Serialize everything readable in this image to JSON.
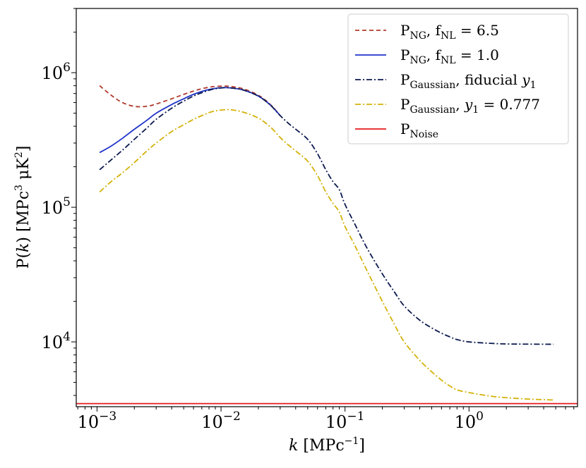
{
  "chart_data": {
    "type": "line",
    "xscale": "log",
    "yscale": "log",
    "xlim": [
      0.00068,
      7.5
    ],
    "ylim": [
      3300,
      3000000
    ],
    "xticks": [
      {
        "value": 0.001,
        "base": "10",
        "exp": "−3"
      },
      {
        "value": 0.01,
        "base": "10",
        "exp": "−2"
      },
      {
        "value": 0.1,
        "base": "10",
        "exp": "−1"
      },
      {
        "value": 1,
        "base": "10",
        "exp": "0"
      }
    ],
    "yticks": [
      {
        "value": 10000,
        "base": "10",
        "exp": "4"
      },
      {
        "value": 100000,
        "base": "10",
        "exp": "5"
      },
      {
        "value": 1000000,
        "base": "10",
        "exp": "6"
      }
    ],
    "xlabel": {
      "main": "k",
      "unit": " [MPc",
      "exp": "−1",
      "close": "]"
    },
    "ylabel": {
      "pre": "P(",
      "var": "k",
      "mid": ")  [MPc",
      "exp1": "3",
      "mid2": " μK",
      "exp2": "2",
      "close": "]"
    },
    "legend_location": "upper-right",
    "series": [
      {
        "name": "P_NG, f_NL = 6.5",
        "label_main": "P",
        "label_sub": "NG",
        "label_rest": ", f",
        "label_sub2": "NL",
        "label_tail": " = 6.5",
        "color": "#b03a2e",
        "dash": "6,4",
        "points": [
          [
            0.00105,
            800000
          ],
          [
            0.0013,
            680000
          ],
          [
            0.0016,
            600000
          ],
          [
            0.002,
            562000
          ],
          [
            0.0025,
            562000
          ],
          [
            0.003,
            585000
          ],
          [
            0.004,
            640000
          ],
          [
            0.005,
            690000
          ],
          [
            0.006,
            730000
          ],
          [
            0.007,
            760000
          ],
          [
            0.008,
            780000
          ],
          [
            0.009,
            790000
          ],
          [
            0.0105,
            795000
          ],
          [
            0.012,
            790000
          ],
          [
            0.015,
            760000
          ],
          [
            0.02,
            680000
          ],
          [
            0.025,
            580000
          ],
          [
            0.03,
            480000
          ]
        ]
      },
      {
        "name": "P_NG, f_NL = 1.0",
        "label_main": "P",
        "label_sub": "NG",
        "label_rest": ", f",
        "label_sub2": "NL",
        "label_tail": " = 1.0",
        "color": "#1f33c9",
        "dash": "",
        "points": [
          [
            0.00105,
            255000
          ],
          [
            0.0013,
            285000
          ],
          [
            0.0016,
            325000
          ],
          [
            0.002,
            380000
          ],
          [
            0.0025,
            440000
          ],
          [
            0.003,
            500000
          ],
          [
            0.004,
            580000
          ],
          [
            0.005,
            640000
          ],
          [
            0.006,
            690000
          ],
          [
            0.007,
            725000
          ],
          [
            0.008,
            750000
          ],
          [
            0.009,
            765000
          ],
          [
            0.0105,
            775000
          ],
          [
            0.012,
            770000
          ],
          [
            0.015,
            745000
          ],
          [
            0.02,
            670000
          ],
          [
            0.025,
            575000
          ],
          [
            0.03,
            480000
          ]
        ]
      },
      {
        "name": "P_Gaussian, fiducial y1",
        "label_main": "P",
        "label_sub": "Gaussian",
        "label_rest": ", fiducial ",
        "label_italic": "y",
        "label_sub2": "1",
        "label_tail": "",
        "color": "#0c1a4f",
        "dash": "8,3,2,3",
        "points": [
          [
            0.00105,
            190000
          ],
          [
            0.0013,
            225000
          ],
          [
            0.0016,
            265000
          ],
          [
            0.002,
            320000
          ],
          [
            0.0025,
            385000
          ],
          [
            0.003,
            450000
          ],
          [
            0.004,
            545000
          ],
          [
            0.005,
            615000
          ],
          [
            0.006,
            670000
          ],
          [
            0.007,
            710000
          ],
          [
            0.008,
            740000
          ],
          [
            0.009,
            760000
          ],
          [
            0.0105,
            773000
          ],
          [
            0.012,
            770000
          ],
          [
            0.015,
            745000
          ],
          [
            0.02,
            670000
          ],
          [
            0.025,
            575000
          ],
          [
            0.03,
            480000
          ],
          [
            0.035,
            420000
          ],
          [
            0.04,
            380000
          ],
          [
            0.05,
            320000
          ],
          [
            0.06,
            250000
          ],
          [
            0.07,
            190000
          ],
          [
            0.08,
            155000
          ],
          [
            0.09,
            135000
          ],
          [
            0.1,
            105000
          ],
          [
            0.12,
            75000
          ],
          [
            0.15,
            50000
          ],
          [
            0.2,
            32000
          ],
          [
            0.25,
            23500
          ],
          [
            0.3,
            18500
          ],
          [
            0.4,
            14500
          ],
          [
            0.5,
            12700
          ],
          [
            0.6,
            11600
          ],
          [
            0.7,
            10900
          ],
          [
            0.8,
            10400
          ],
          [
            1.0,
            10000
          ],
          [
            1.5,
            9750
          ],
          [
            2.0,
            9650
          ],
          [
            3.0,
            9620
          ],
          [
            4.8,
            9600
          ]
        ]
      },
      {
        "name": "P_Gaussian, y1 = 0.777",
        "label_main": "P",
        "label_sub": "Gaussian",
        "label_rest": ", ",
        "label_italic": "y",
        "label_sub2": "1",
        "label_tail": " = 0.777",
        "color": "#d4b20a",
        "dash": "8,3,2,3",
        "points": [
          [
            0.00105,
            130000
          ],
          [
            0.0013,
            155000
          ],
          [
            0.0016,
            180000
          ],
          [
            0.002,
            215000
          ],
          [
            0.0025,
            260000
          ],
          [
            0.003,
            300000
          ],
          [
            0.004,
            365000
          ],
          [
            0.005,
            410000
          ],
          [
            0.006,
            450000
          ],
          [
            0.007,
            480000
          ],
          [
            0.008,
            505000
          ],
          [
            0.009,
            520000
          ],
          [
            0.0105,
            530000
          ],
          [
            0.012,
            530000
          ],
          [
            0.015,
            510000
          ],
          [
            0.02,
            460000
          ],
          [
            0.025,
            395000
          ],
          [
            0.03,
            330000
          ],
          [
            0.035,
            290000
          ],
          [
            0.04,
            262000
          ],
          [
            0.05,
            220000
          ],
          [
            0.06,
            172000
          ],
          [
            0.07,
            130000
          ],
          [
            0.08,
            107000
          ],
          [
            0.09,
            92000
          ],
          [
            0.1,
            72000
          ],
          [
            0.12,
            52000
          ],
          [
            0.15,
            34000
          ],
          [
            0.2,
            20000
          ],
          [
            0.25,
            13500
          ],
          [
            0.3,
            10000
          ],
          [
            0.4,
            7300
          ],
          [
            0.5,
            6000
          ],
          [
            0.6,
            5200
          ],
          [
            0.7,
            4700
          ],
          [
            0.8,
            4400
          ],
          [
            1.0,
            4200
          ],
          [
            1.5,
            3950
          ],
          [
            2.0,
            3850
          ],
          [
            3.0,
            3760
          ],
          [
            4.8,
            3700
          ]
        ]
      },
      {
        "name": "P_Noise",
        "label_main": "P",
        "label_sub": "Noise",
        "label_rest": "",
        "label_tail": "",
        "color": "#e41a1c",
        "dash": "",
        "points": [
          [
            0.00068,
            3480
          ],
          [
            7.5,
            3480
          ]
        ]
      }
    ]
  }
}
